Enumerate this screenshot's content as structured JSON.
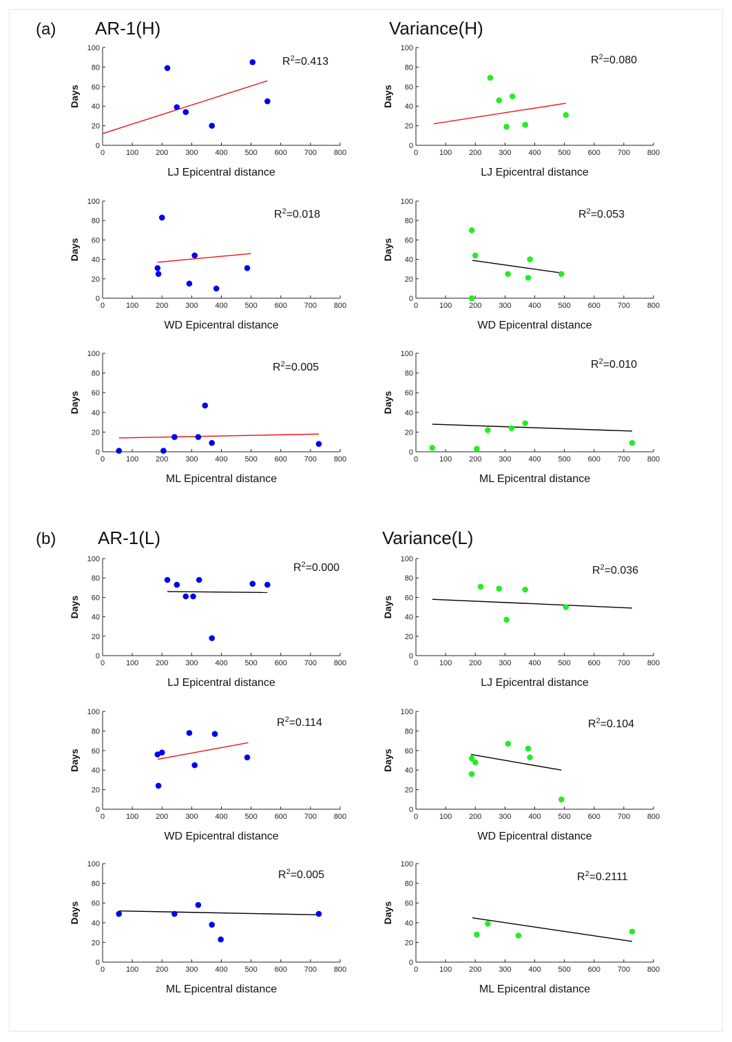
{
  "figure": {
    "sections": [
      {
        "label": "(a)",
        "titles": [
          "AR-1(H)",
          "Variance(H)"
        ]
      },
      {
        "label": "(b)",
        "titles": [
          "AR-1(L)",
          "Variance(L)"
        ]
      }
    ],
    "colors": {
      "blue": "#0000ee",
      "green": "#22ee22",
      "red": "#ee1111",
      "black": "#000000"
    }
  },
  "chart_data": [
    {
      "type": "scatter",
      "id": "a-ar1-lj",
      "title": "AR-1(H)",
      "xlabel": "LJ Epicentral distance",
      "ylabel": "Days",
      "xlim": [
        0,
        800
      ],
      "ylim": [
        0,
        100
      ],
      "xticks": [
        0,
        100,
        200,
        300,
        400,
        500,
        600,
        700,
        800
      ],
      "yticks": [
        0,
        20,
        40,
        60,
        80,
        100
      ],
      "color": "blue",
      "r2": "0.413",
      "points": [
        [
          218,
          79
        ],
        [
          250,
          39
        ],
        [
          280,
          34
        ],
        [
          368,
          20
        ],
        [
          505,
          85
        ],
        [
          555,
          45
        ]
      ],
      "fit": {
        "color": "red",
        "x": [
          0,
          555
        ],
        "y": [
          12,
          66
        ]
      }
    },
    {
      "type": "scatter",
      "id": "a-var-lj",
      "title": "Variance(H)",
      "xlabel": "LJ Epicentral distance",
      "ylabel": "Days",
      "xlim": [
        0,
        800
      ],
      "ylim": [
        0,
        100
      ],
      "xticks": [
        0,
        100,
        200,
        300,
        400,
        500,
        600,
        700,
        800
      ],
      "yticks": [
        0,
        20,
        40,
        60,
        80,
        100
      ],
      "color": "green",
      "r2": "0.080",
      "points": [
        [
          250,
          69
        ],
        [
          280,
          46
        ],
        [
          305,
          19
        ],
        [
          325,
          50
        ],
        [
          368,
          21
        ],
        [
          505,
          31
        ]
      ],
      "fit": {
        "color": "red",
        "x": [
          60,
          505
        ],
        "y": [
          22,
          43
        ]
      }
    },
    {
      "type": "scatter",
      "id": "a-ar1-wd",
      "xlabel": "WD Epicentral distance",
      "ylabel": "Days",
      "xlim": [
        0,
        800
      ],
      "ylim": [
        0,
        100
      ],
      "xticks": [
        0,
        100,
        200,
        300,
        400,
        500,
        600,
        700,
        800
      ],
      "yticks": [
        0,
        20,
        40,
        60,
        80,
        100
      ],
      "color": "blue",
      "r2": "0.018",
      "points": [
        [
          185,
          31
        ],
        [
          188,
          25
        ],
        [
          200,
          83
        ],
        [
          292,
          15
        ],
        [
          310,
          44
        ],
        [
          383,
          10
        ],
        [
          487,
          31
        ]
      ],
      "fit": {
        "color": "red",
        "x": [
          185,
          500
        ],
        "y": [
          37,
          46
        ]
      }
    },
    {
      "type": "scatter",
      "id": "a-var-wd",
      "xlabel": "WD Epicentral distance",
      "ylabel": "Days",
      "xlim": [
        0,
        800
      ],
      "ylim": [
        0,
        100
      ],
      "xticks": [
        0,
        100,
        200,
        300,
        400,
        500,
        600,
        700,
        800
      ],
      "yticks": [
        0,
        20,
        40,
        60,
        80,
        100
      ],
      "color": "green",
      "r2": "0.053",
      "points": [
        [
          188,
          70
        ],
        [
          188,
          0
        ],
        [
          200,
          44
        ],
        [
          310,
          25
        ],
        [
          378,
          21
        ],
        [
          384,
          40
        ],
        [
          490,
          25
        ]
      ],
      "fit": {
        "color": "black",
        "x": [
          190,
          490
        ],
        "y": [
          39,
          26
        ]
      }
    },
    {
      "type": "scatter",
      "id": "a-ar1-ml",
      "xlabel": "ML Epicentral distance",
      "ylabel": "Days",
      "xlim": [
        0,
        800
      ],
      "ylim": [
        0,
        100
      ],
      "xticks": [
        0,
        100,
        200,
        300,
        400,
        500,
        600,
        700,
        800
      ],
      "yticks": [
        0,
        20,
        40,
        60,
        80,
        100
      ],
      "color": "blue",
      "r2": "0.005",
      "points": [
        [
          55,
          1
        ],
        [
          205,
          1
        ],
        [
          242,
          15
        ],
        [
          322,
          15
        ],
        [
          345,
          47
        ],
        [
          368,
          9
        ],
        [
          728,
          8
        ]
      ],
      "fit": {
        "color": "red",
        "x": [
          55,
          728
        ],
        "y": [
          14,
          18
        ]
      }
    },
    {
      "type": "scatter",
      "id": "a-var-ml",
      "xlabel": "ML Epicentral distance",
      "ylabel": "Days",
      "xlim": [
        0,
        800
      ],
      "ylim": [
        0,
        100
      ],
      "xticks": [
        0,
        100,
        200,
        300,
        400,
        500,
        600,
        700,
        800
      ],
      "yticks": [
        0,
        20,
        40,
        60,
        80,
        100
      ],
      "color": "green",
      "r2": "0.010",
      "points": [
        [
          55,
          4
        ],
        [
          205,
          3
        ],
        [
          242,
          22
        ],
        [
          322,
          24
        ],
        [
          368,
          29
        ],
        [
          728,
          9
        ]
      ],
      "fit": {
        "color": "black",
        "x": [
          55,
          728
        ],
        "y": [
          28,
          21
        ]
      }
    },
    {
      "type": "scatter",
      "id": "b-ar1-lj",
      "title": "AR-1(L)",
      "xlabel": "LJ Epicentral distance",
      "ylabel": "Days",
      "xlim": [
        0,
        800
      ],
      "ylim": [
        0,
        100
      ],
      "xticks": [
        0,
        100,
        200,
        300,
        400,
        500,
        600,
        700,
        800
      ],
      "yticks": [
        0,
        20,
        40,
        60,
        80,
        100
      ],
      "color": "blue",
      "r2": "0.000",
      "points": [
        [
          218,
          78
        ],
        [
          250,
          73
        ],
        [
          280,
          61
        ],
        [
          305,
          61
        ],
        [
          325,
          78
        ],
        [
          368,
          18
        ],
        [
          505,
          74
        ],
        [
          555,
          73
        ]
      ],
      "fit": {
        "color": "black",
        "x": [
          218,
          555
        ],
        "y": [
          66,
          65
        ]
      }
    },
    {
      "type": "scatter",
      "id": "b-var-lj",
      "title": "Variance(L)",
      "xlabel": "LJ Epicentral distance",
      "ylabel": "Days",
      "xlim": [
        0,
        800
      ],
      "ylim": [
        0,
        100
      ],
      "xticks": [
        0,
        100,
        200,
        300,
        400,
        500,
        600,
        700,
        800
      ],
      "yticks": [
        0,
        20,
        40,
        60,
        80,
        100
      ],
      "color": "green",
      "r2": "0.036",
      "points": [
        [
          218,
          71
        ],
        [
          280,
          69
        ],
        [
          305,
          37
        ],
        [
          368,
          68
        ],
        [
          505,
          50
        ]
      ],
      "fit": {
        "color": "black",
        "x": [
          55,
          728
        ],
        "y": [
          58,
          49
        ]
      }
    },
    {
      "type": "scatter",
      "id": "b-ar1-wd",
      "xlabel": "WD Epicentral distance",
      "ylabel": "Days",
      "xlim": [
        0,
        800
      ],
      "ylim": [
        0,
        100
      ],
      "xticks": [
        0,
        100,
        200,
        300,
        400,
        500,
        600,
        700,
        800
      ],
      "yticks": [
        0,
        20,
        40,
        60,
        80,
        100
      ],
      "color": "blue",
      "r2": "0.114",
      "points": [
        [
          185,
          56
        ],
        [
          188,
          24
        ],
        [
          200,
          58
        ],
        [
          292,
          78
        ],
        [
          310,
          45
        ],
        [
          378,
          77
        ],
        [
          487,
          53
        ]
      ],
      "fit": {
        "color": "red",
        "x": [
          185,
          490
        ],
        "y": [
          51,
          68
        ]
      }
    },
    {
      "type": "scatter",
      "id": "b-var-wd",
      "xlabel": "WD Epicentral distance",
      "ylabel": "Days",
      "xlim": [
        0,
        800
      ],
      "ylim": [
        0,
        100
      ],
      "xticks": [
        0,
        100,
        200,
        300,
        400,
        500,
        600,
        700,
        800
      ],
      "yticks": [
        0,
        20,
        40,
        60,
        80,
        100
      ],
      "color": "green",
      "r2": "0.104",
      "points": [
        [
          188,
          36
        ],
        [
          188,
          52
        ],
        [
          200,
          48
        ],
        [
          310,
          67
        ],
        [
          378,
          62
        ],
        [
          384,
          53
        ],
        [
          490,
          10
        ]
      ],
      "fit": {
        "color": "black",
        "x": [
          185,
          490
        ],
        "y": [
          56,
          40
        ]
      }
    },
    {
      "type": "scatter",
      "id": "b-ar1-ml",
      "xlabel": "ML Epicentral distance",
      "ylabel": "Days",
      "xlim": [
        0,
        800
      ],
      "ylim": [
        0,
        100
      ],
      "xticks": [
        0,
        100,
        200,
        300,
        400,
        500,
        600,
        700,
        800
      ],
      "yticks": [
        0,
        20,
        40,
        60,
        80,
        100
      ],
      "color": "blue",
      "r2": "0.005",
      "points": [
        [
          55,
          49
        ],
        [
          242,
          49
        ],
        [
          322,
          58
        ],
        [
          368,
          38
        ],
        [
          398,
          23
        ],
        [
          728,
          49
        ]
      ],
      "fit": {
        "color": "black",
        "x": [
          55,
          728
        ],
        "y": [
          52,
          48
        ]
      }
    },
    {
      "type": "scatter",
      "id": "b-var-ml",
      "xlabel": "ML Epicentral distance",
      "ylabel": "Days",
      "xlim": [
        0,
        800
      ],
      "ylim": [
        0,
        100
      ],
      "xticks": [
        0,
        100,
        200,
        300,
        400,
        500,
        600,
        700,
        800
      ],
      "yticks": [
        0,
        20,
        40,
        60,
        80,
        100
      ],
      "color": "green",
      "r2": "0.2111",
      "points": [
        [
          205,
          28
        ],
        [
          242,
          39
        ],
        [
          345,
          27
        ],
        [
          728,
          31
        ]
      ],
      "fit": {
        "color": "black",
        "x": [
          190,
          728
        ],
        "y": [
          45,
          21
        ]
      }
    }
  ]
}
